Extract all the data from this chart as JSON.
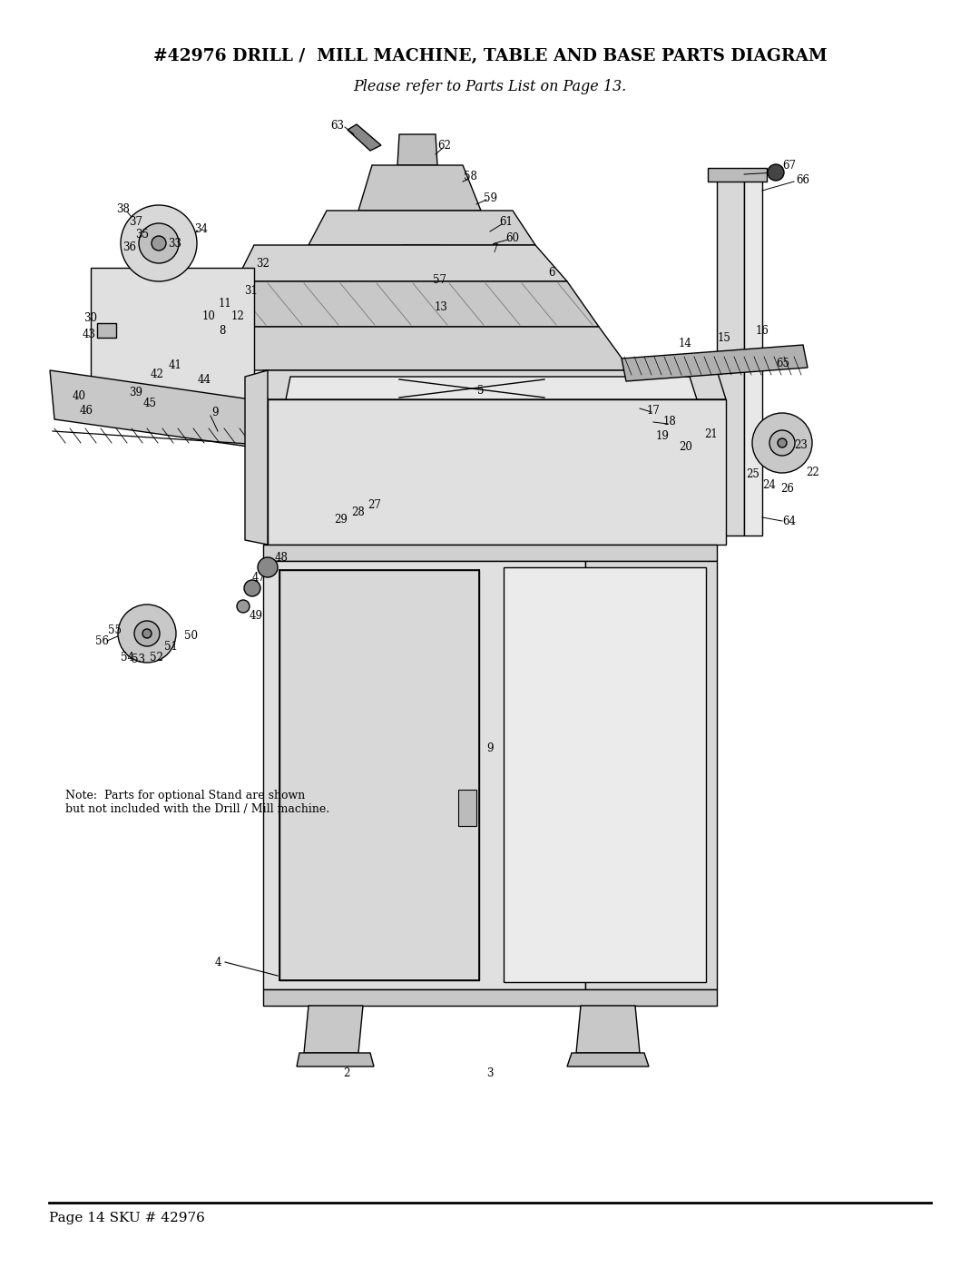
{
  "title": "#42976 DRILL /  MILL MACHINE, TABLE AND BASE PARTS DIAGRAM",
  "subtitle": "Please refer to Parts List on Page 13.",
  "footer_text": "Page 14 SKU # 42976",
  "background_color": "#ffffff",
  "note_text": "Note:  Parts for optional Stand are shown\nbut not included with the Drill / Mill machine.",
  "title_fontsize": 13.5,
  "subtitle_fontsize": 11.5,
  "footer_fontsize": 11,
  "label_fontsize": 8.5
}
